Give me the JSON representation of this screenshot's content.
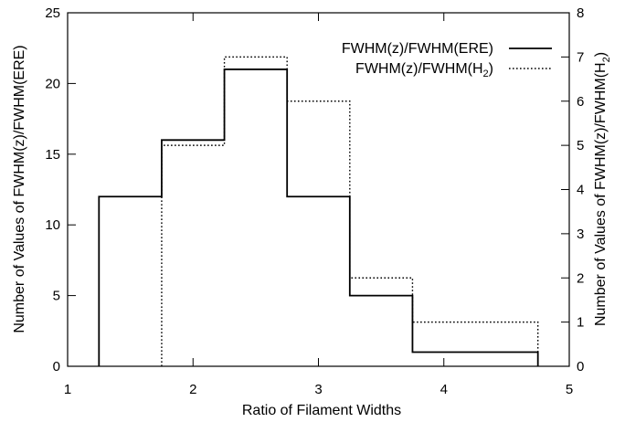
{
  "chart_data": {
    "type": "histogram",
    "xlabel": "Ratio of Filament Widths",
    "ylabel_left": "Number of Values of FWHM(z)/FWHM(ERE)",
    "ylabel_right": {
      "prefix": "Number of Values of FWHM(z)/FWHM(H",
      "subscript": "2",
      "suffix": ")"
    },
    "xlim": [
      1,
      5
    ],
    "ylim_left": [
      0,
      25
    ],
    "ylim_right": [
      0,
      8
    ],
    "x_ticks": [
      1,
      2,
      3,
      4,
      5
    ],
    "y_ticks_left": [
      0,
      5,
      10,
      15,
      20,
      25
    ],
    "y_ticks_right": [
      0,
      1,
      2,
      3,
      4,
      5,
      6,
      7,
      8
    ],
    "legend": {
      "position": "top-right",
      "entries": [
        {
          "series": "ere",
          "label": "FWHM(z)/FWHM(ERE)",
          "line": "solid"
        },
        {
          "series": "h2",
          "label_prefix": "FWHM(z)/FWHM(H",
          "label_subscript": "2",
          "label_suffix": ")",
          "line": "dotted"
        }
      ]
    },
    "series": [
      {
        "id": "ere",
        "axis": "left",
        "line": "solid",
        "bins": [
          {
            "x0": 1.25,
            "x1": 1.75,
            "value": 12
          },
          {
            "x0": 1.75,
            "x1": 2.25,
            "value": 16
          },
          {
            "x0": 2.25,
            "x1": 2.75,
            "value": 21
          },
          {
            "x0": 2.75,
            "x1": 3.25,
            "value": 12
          },
          {
            "x0": 3.25,
            "x1": 3.75,
            "value": 5
          },
          {
            "x0": 3.75,
            "x1": 4.75,
            "value": 1
          }
        ]
      },
      {
        "id": "h2",
        "axis": "right",
        "line": "dotted",
        "bins": [
          {
            "x0": 1.75,
            "x1": 2.25,
            "value": 5
          },
          {
            "x0": 2.25,
            "x1": 2.75,
            "value": 7
          },
          {
            "x0": 2.75,
            "x1": 3.25,
            "value": 6
          },
          {
            "x0": 3.25,
            "x1": 3.75,
            "value": 2
          },
          {
            "x0": 3.75,
            "x1": 4.75,
            "value": 1
          }
        ]
      }
    ]
  }
}
